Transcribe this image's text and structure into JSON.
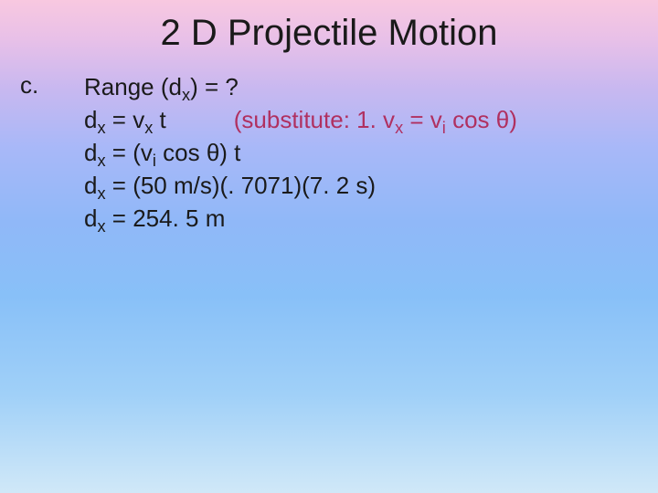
{
  "title": "2 D Projectile Motion",
  "label": "c.",
  "lines": {
    "l1_a": "Range (d",
    "l1_b": "x",
    "l1_c": ") = ?",
    "l2_a": "d",
    "l2_b": "x",
    "l2_c": " = v",
    "l2_d": "x",
    "l2_e": " t",
    "l2_note_a": "(substitute:  1.    v",
    "l2_note_b": "x",
    "l2_note_c": " = v",
    "l2_note_d": "i",
    "l2_note_e": " cos θ)",
    "l3_a": "d",
    "l3_b": "x",
    "l3_c": " = (v",
    "l3_d": "i",
    "l3_e": " cos θ) t",
    "l4_a": "d",
    "l4_b": "x",
    "l4_c": " = (50 m/s)(. 7071)(7. 2 s)",
    "l5_a": "d",
    "l5_b": "x",
    "l5_c": " = 254. 5 m"
  },
  "style": {
    "title_fontsize": 40,
    "body_fontsize": 26,
    "note_color": "#b03060",
    "text_color": "#1a1a1a",
    "gradient": [
      "#f8c8e0",
      "#e8c0e8",
      "#c8b8f0",
      "#a8b8f8",
      "#90b8f8",
      "#88c0f8",
      "#a0d0f8",
      "#d0e8f8"
    ]
  }
}
